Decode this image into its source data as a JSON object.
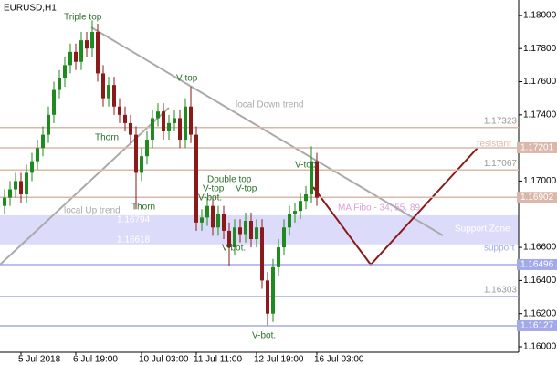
{
  "chart_data": {
    "type": "candlestick",
    "title": "EURUSD,H1",
    "categories": [
      null,
      null,
      null,
      "5 Jul 2018",
      null,
      null,
      null,
      null,
      null,
      null,
      null,
      null,
      null,
      "6 Jul 19:00",
      null,
      null,
      null,
      null,
      null,
      null,
      null,
      null,
      null,
      null,
      null,
      "10 Jul 03:00",
      null,
      null,
      null,
      null,
      null,
      null,
      null,
      null,
      null,
      "11 Jul 11:00",
      null,
      null,
      null,
      null,
      null,
      null,
      null,
      null,
      null,
      null,
      "12 Jul 19:00",
      null,
      null,
      null,
      null,
      null,
      null,
      null,
      null,
      null,
      null,
      "16 Jul 03:00"
    ],
    "open": [
      1.1685,
      1.169,
      1.1695,
      1.17,
      1.1692,
      1.1705,
      1.1712,
      1.172,
      1.1728,
      1.174,
      1.1755,
      1.1762,
      1.177,
      1.1778,
      1.1772,
      1.1785,
      1.178,
      1.179,
      1.1765,
      1.175,
      1.1758,
      1.1745,
      1.174,
      1.1735,
      1.1728,
      1.1705,
      1.1715,
      1.1725,
      1.1738,
      1.1742,
      1.173,
      1.1735,
      1.1738,
      1.1725,
      1.1745,
      1.1728,
      1.1675,
      1.1678,
      1.1685,
      1.1672,
      1.168,
      1.167,
      1.166,
      1.1672,
      1.1668,
      1.1676,
      1.1665,
      1.1672,
      1.164,
      1.162,
      1.1648,
      1.166,
      1.1672,
      1.168,
      1.1682,
      1.1688,
      1.1692,
      1.1712
    ],
    "high": [
      1.1695,
      1.17,
      1.1705,
      1.1705,
      1.171,
      1.1717,
      1.1725,
      1.1733,
      1.1745,
      1.176,
      1.1767,
      1.1775,
      1.1783,
      1.1783,
      1.179,
      1.179,
      1.1797,
      1.1795,
      1.177,
      1.1763,
      1.1763,
      1.175,
      1.1745,
      1.174,
      1.1733,
      1.172,
      1.173,
      1.1743,
      1.1747,
      1.1747,
      1.174,
      1.1743,
      1.1743,
      1.175,
      1.1757,
      1.1733,
      1.1683,
      1.169,
      1.169,
      1.1685,
      1.1685,
      1.1675,
      1.1677,
      1.1677,
      1.1681,
      1.1681,
      1.1677,
      1.1677,
      1.1645,
      1.1653,
      1.1665,
      1.1677,
      1.1685,
      1.1687,
      1.1693,
      1.1697,
      1.1721,
      1.1717
    ],
    "low": [
      1.168,
      1.1685,
      1.169,
      1.1687,
      1.1687,
      1.17,
      1.1707,
      1.1715,
      1.1723,
      1.1735,
      1.175,
      1.1757,
      1.1765,
      1.1767,
      1.1767,
      1.1775,
      1.1775,
      1.176,
      1.1745,
      1.1745,
      1.174,
      1.1735,
      1.173,
      1.1723,
      1.1683,
      1.17,
      1.171,
      1.172,
      1.1733,
      1.1725,
      1.1725,
      1.173,
      1.172,
      1.172,
      1.1723,
      1.167,
      1.167,
      1.1673,
      1.1667,
      1.1667,
      1.1665,
      1.1649,
      1.1655,
      1.1663,
      1.1663,
      1.166,
      1.166,
      1.1635,
      1.1613,
      1.1615,
      1.1643,
      1.1655,
      1.1667,
      1.1675,
      1.1677,
      1.1683,
      1.1687,
      1.1685
    ],
    "close": [
      1.169,
      1.1695,
      1.17,
      1.1692,
      1.1705,
      1.1712,
      1.172,
      1.1728,
      1.174,
      1.1755,
      1.1762,
      1.177,
      1.1778,
      1.1772,
      1.1785,
      1.178,
      1.179,
      1.1765,
      1.175,
      1.1758,
      1.1745,
      1.174,
      1.1735,
      1.1728,
      1.1705,
      1.1715,
      1.1725,
      1.1738,
      1.1742,
      1.173,
      1.1735,
      1.1738,
      1.1725,
      1.1745,
      1.1728,
      1.1675,
      1.1678,
      1.1685,
      1.1672,
      1.168,
      1.167,
      1.166,
      1.1672,
      1.1668,
      1.1676,
      1.1665,
      1.1672,
      1.164,
      1.162,
      1.1648,
      1.166,
      1.1672,
      1.168,
      1.1682,
      1.1688,
      1.1692,
      1.1712,
      1.169
    ],
    "up_color": "#1f8a1f",
    "down_color": "#8b1a1a",
    "ylim": [
      1.15967,
      1.18093
    ],
    "yticks": [
      {
        "value": 1.18,
        "label": "1.18000"
      },
      {
        "value": 1.178,
        "label": "1.17800"
      },
      {
        "value": 1.176,
        "label": "1.17600"
      },
      {
        "value": 1.174,
        "label": "1.17400"
      },
      {
        "value": 1.17,
        "label": "1.17000"
      },
      {
        "value": 1.166,
        "label": "1.16600"
      },
      {
        "value": 1.164,
        "label": "1.16400"
      },
      {
        "value": 1.162,
        "label": "1.16200"
      },
      {
        "value": 1.16,
        "label": "1.16000"
      }
    ],
    "levels": [
      {
        "value": 1.17323,
        "color": "#d9b8ab",
        "highlight": false
      },
      {
        "value": 1.17201,
        "color": "#d9b8ab",
        "highlight": true
      },
      {
        "value": 1.17067,
        "color": "#d9b8ab",
        "highlight": false
      },
      {
        "value": 1.16902,
        "color": "#d9b8ab",
        "highlight": true
      },
      {
        "value": 1.16496,
        "color": "#a3aaea",
        "highlight": true
      },
      {
        "value": 1.16303,
        "color": "#a3aaea",
        "highlight": false
      },
      {
        "value": 1.16127,
        "color": "#a3aaea",
        "highlight": true
      }
    ],
    "zone": {
      "top": 1.16794,
      "bottom": 1.16618,
      "color": "#dcdcfa",
      "label": "Support Zone"
    },
    "annotations": [
      "Triple top",
      "V-top",
      "local Down trend",
      "Thorn",
      "Thorn",
      "Double top",
      "V-top",
      "V-top",
      "V-bot.",
      "V-top",
      "local Up trend",
      "V-bot.",
      "V-bot.",
      "MA Fibo - 34, 55, 89",
      "support",
      "resistant"
    ]
  }
}
